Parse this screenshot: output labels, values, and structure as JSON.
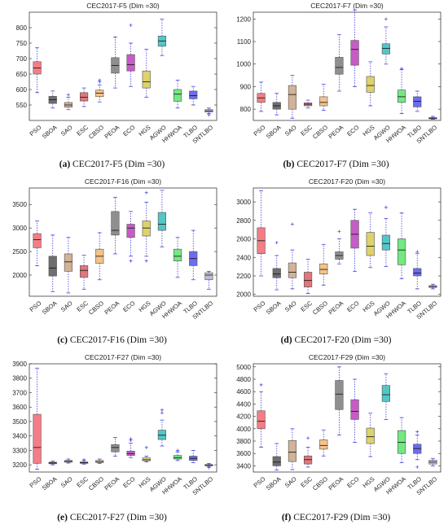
{
  "chart_data": [
    {
      "type": "box",
      "title": "CEC2017-F5 (Dim =30)",
      "caption_tag": "(a)",
      "caption_text": "CEC2017-F5 (Dim =30)",
      "categories": [
        "PSO",
        "SBOA",
        "SAO",
        "ESC",
        "CBSO",
        "PEOA",
        "ECO",
        "HGS",
        "AGWO",
        "HHWOA",
        "TLBO",
        "SNTLBO"
      ],
      "ylim": [
        500,
        850
      ],
      "yticks": [
        550,
        600,
        650,
        700,
        750,
        800
      ],
      "boxes": [
        {
          "whisker_low": 590,
          "q1": 650,
          "median": 670,
          "q3": 690,
          "whisker_high": 735,
          "outliers": []
        },
        {
          "whisker_low": 540,
          "q1": 555,
          "median": 567,
          "q3": 578,
          "whisker_high": 595,
          "outliers": []
        },
        {
          "whisker_low": 535,
          "q1": 543,
          "median": 550,
          "q3": 558,
          "whisker_high": 575,
          "outliers": [
            583
          ]
        },
        {
          "whisker_low": 545,
          "q1": 563,
          "median": 575,
          "q3": 590,
          "whisker_high": 605,
          "outliers": []
        },
        {
          "whisker_low": 560,
          "q1": 577,
          "median": 588,
          "q3": 598,
          "whisker_high": 615,
          "outliers": [
            625,
            630
          ]
        },
        {
          "whisker_low": 605,
          "q1": 653,
          "median": 678,
          "q3": 703,
          "whisker_high": 770,
          "outliers": []
        },
        {
          "whisker_low": 610,
          "q1": 660,
          "median": 680,
          "q3": 713,
          "whisker_high": 750,
          "outliers": [
            808
          ]
        },
        {
          "whisker_low": 575,
          "q1": 605,
          "median": 625,
          "q3": 660,
          "whisker_high": 730,
          "outliers": []
        },
        {
          "whisker_low": 710,
          "q1": 740,
          "median": 757,
          "q3": 773,
          "whisker_high": 828,
          "outliers": []
        },
        {
          "whisker_low": 540,
          "q1": 562,
          "median": 585,
          "q3": 600,
          "whisker_high": 630,
          "outliers": []
        },
        {
          "whisker_low": 550,
          "q1": 570,
          "median": 580,
          "q3": 595,
          "whisker_high": 610,
          "outliers": []
        },
        {
          "whisker_low": 522,
          "q1": 527,
          "median": 531,
          "q3": 535,
          "whisker_high": 540,
          "outliers": [
            518
          ]
        }
      ]
    },
    {
      "type": "box",
      "title": "CEC2017-F7 (Dim =30)",
      "caption_tag": "(b)",
      "caption_text": "CEC2017-F7 (Dim =30)",
      "categories": [
        "PSO",
        "SBOA",
        "SAO",
        "ESC",
        "CBSO",
        "PEOA",
        "ECO",
        "HGS",
        "AGWO",
        "HHWOA",
        "TLBO",
        "SNTLBO"
      ],
      "ylim": [
        750,
        1230
      ],
      "yticks": [
        800,
        900,
        1000,
        1100,
        1200
      ],
      "boxes": [
        {
          "whisker_low": 790,
          "q1": 830,
          "median": 850,
          "q3": 870,
          "whisker_high": 920,
          "outliers": []
        },
        {
          "whisker_low": 775,
          "q1": 800,
          "median": 815,
          "q3": 830,
          "whisker_high": 870,
          "outliers": []
        },
        {
          "whisker_low": 760,
          "q1": 800,
          "median": 865,
          "q3": 905,
          "whisker_high": 950,
          "outliers": []
        },
        {
          "whisker_low": 805,
          "q1": 815,
          "median": 822,
          "q3": 828,
          "whisker_high": 840,
          "outliers": []
        },
        {
          "whisker_low": 795,
          "q1": 815,
          "median": 830,
          "q3": 855,
          "whisker_high": 910,
          "outliers": []
        },
        {
          "whisker_low": 880,
          "q1": 955,
          "median": 985,
          "q3": 1030,
          "whisker_high": 1130,
          "outliers": []
        },
        {
          "whisker_low": 900,
          "q1": 995,
          "median": 1065,
          "q3": 1105,
          "whisker_high": 1240,
          "outliers": []
        },
        {
          "whisker_low": 815,
          "q1": 875,
          "median": 905,
          "q3": 945,
          "whisker_high": 1010,
          "outliers": []
        },
        {
          "whisker_low": 1000,
          "q1": 1045,
          "median": 1070,
          "q3": 1090,
          "whisker_high": 1165,
          "outliers": [
            1200
          ]
        },
        {
          "whisker_low": 780,
          "q1": 830,
          "median": 855,
          "q3": 885,
          "whisker_high": 975,
          "outliers": [
            980
          ]
        },
        {
          "whisker_low": 790,
          "q1": 810,
          "median": 835,
          "q3": 855,
          "whisker_high": 880,
          "outliers": []
        },
        {
          "whisker_low": 755,
          "q1": 757,
          "median": 760,
          "q3": 763,
          "whisker_high": 768,
          "outliers": []
        }
      ]
    },
    {
      "type": "box",
      "title": "CEC2017-F16 (Dim =30)",
      "caption_tag": "(c)",
      "caption_text": "CEC2017-F16 (Dim =30)",
      "categories": [
        "PSO",
        "SBOA",
        "SAO",
        "ESC",
        "CBSO",
        "PEOA",
        "ECO",
        "HGS",
        "AGWO",
        "HHWOA",
        "TLBO",
        "SNTLBO"
      ],
      "ylim": [
        1550,
        3850
      ],
      "yticks": [
        2000,
        2500,
        3000,
        3500
      ],
      "boxes": [
        {
          "whisker_low": 2200,
          "q1": 2580,
          "median": 2750,
          "q3": 2880,
          "whisker_high": 3150,
          "outliers": []
        },
        {
          "whisker_low": 1650,
          "q1": 1980,
          "median": 2150,
          "q3": 2400,
          "whisker_high": 2850,
          "outliers": []
        },
        {
          "whisker_low": 1620,
          "q1": 2080,
          "median": 2280,
          "q3": 2450,
          "whisker_high": 2800,
          "outliers": []
        },
        {
          "whisker_low": 1700,
          "q1": 1950,
          "median": 2100,
          "q3": 2200,
          "whisker_high": 2420,
          "outliers": []
        },
        {
          "whisker_low": 1900,
          "q1": 2250,
          "median": 2400,
          "q3": 2550,
          "whisker_high": 2900,
          "outliers": []
        },
        {
          "whisker_low": 2450,
          "q1": 2850,
          "median": 2950,
          "q3": 3350,
          "whisker_high": 3650,
          "outliers": []
        },
        {
          "whisker_low": 2400,
          "q1": 2800,
          "median": 3000,
          "q3": 3080,
          "whisker_high": 3350,
          "outliers": [
            2300
          ]
        },
        {
          "whisker_low": 2400,
          "q1": 2830,
          "median": 3000,
          "q3": 3150,
          "whisker_high": 3550,
          "outliers": [
            2300,
            3750
          ]
        },
        {
          "whisker_low": 2600,
          "q1": 2950,
          "median": 3080,
          "q3": 3330,
          "whisker_high": 3800,
          "outliers": []
        },
        {
          "whisker_low": 1950,
          "q1": 2300,
          "median": 2400,
          "q3": 2550,
          "whisker_high": 2800,
          "outliers": []
        },
        {
          "whisker_low": 1900,
          "q1": 2200,
          "median": 2350,
          "q3": 2500,
          "whisker_high": 2950,
          "outliers": []
        },
        {
          "whisker_low": 1700,
          "q1": 1900,
          "median": 2000,
          "q3": 2050,
          "whisker_high": 2080,
          "outliers": []
        }
      ]
    },
    {
      "type": "box",
      "title": "CEC2017-F20 (Dim =30)",
      "caption_tag": "(d)",
      "caption_text": "CEC2017-F20 (Dim =30)",
      "categories": [
        "PSO",
        "SBOA",
        "SAO",
        "ESC",
        "CBSO",
        "PEOA",
        "ECO",
        "HGS",
        "AGWO",
        "HHWOA",
        "TLBO",
        "SNTLBO"
      ],
      "ylim": [
        1980,
        3150
      ],
      "yticks": [
        2000,
        2200,
        2400,
        2600,
        2800,
        3000
      ],
      "boxes": [
        {
          "whisker_low": 2200,
          "q1": 2440,
          "median": 2580,
          "q3": 2720,
          "whisker_high": 3120,
          "outliers": []
        },
        {
          "whisker_low": 2050,
          "q1": 2180,
          "median": 2220,
          "q3": 2280,
          "whisker_high": 2420,
          "outliers": [
            2560
          ]
        },
        {
          "whisker_low": 2060,
          "q1": 2180,
          "median": 2240,
          "q3": 2340,
          "whisker_high": 2480,
          "outliers": [
            2760
          ]
        },
        {
          "whisker_low": 2010,
          "q1": 2080,
          "median": 2150,
          "q3": 2240,
          "whisker_high": 2380,
          "outliers": []
        },
        {
          "whisker_low": 2100,
          "q1": 2220,
          "median": 2270,
          "q3": 2330,
          "whisker_high": 2540,
          "outliers": []
        },
        {
          "whisker_low": 2330,
          "q1": 2380,
          "median": 2420,
          "q3": 2460,
          "whisker_high": 2600,
          "outliers": [
            2680
          ]
        },
        {
          "whisker_low": 2250,
          "q1": 2500,
          "median": 2650,
          "q3": 2800,
          "whisker_high": 2920,
          "outliers": []
        },
        {
          "whisker_low": 2290,
          "q1": 2420,
          "median": 2520,
          "q3": 2670,
          "whisker_high": 2880,
          "outliers": []
        },
        {
          "whisker_low": 2300,
          "q1": 2480,
          "median": 2550,
          "q3": 2640,
          "whisker_high": 2820,
          "outliers": [
            2940
          ]
        },
        {
          "whisker_low": 2170,
          "q1": 2320,
          "median": 2480,
          "q3": 2600,
          "whisker_high": 2880,
          "outliers": []
        },
        {
          "whisker_low": 2060,
          "q1": 2200,
          "median": 2230,
          "q3": 2280,
          "whisker_high": 2440,
          "outliers": [
            2460
          ]
        },
        {
          "whisker_low": 2060,
          "q1": 2075,
          "median": 2085,
          "q3": 2095,
          "whisker_high": 2110,
          "outliers": []
        }
      ]
    },
    {
      "type": "box",
      "title": "CEC2017-F27 (Dim =30)",
      "caption_tag": "(e)",
      "caption_text": "CEC2017-F27 (Dim =30)",
      "categories": [
        "PSO",
        "SBOA",
        "SAO",
        "ESC",
        "CBSO",
        "PEOA",
        "ECO",
        "HGS",
        "AGWO",
        "HHWOA",
        "TLBO",
        "SNTLBO"
      ],
      "ylim": [
        3150,
        3900
      ],
      "yticks": [
        3200,
        3300,
        3400,
        3500,
        3600,
        3700,
        3800,
        3900
      ],
      "boxes": [
        {
          "whisker_low": 3170,
          "q1": 3210,
          "median": 3320,
          "q3": 3550,
          "whisker_high": 3870,
          "outliers": []
        },
        {
          "whisker_low": 3200,
          "q1": 3207,
          "median": 3213,
          "q3": 3218,
          "whisker_high": 3225,
          "outliers": []
        },
        {
          "whisker_low": 3212,
          "q1": 3218,
          "median": 3224,
          "q3": 3230,
          "whisker_high": 3240,
          "outliers": []
        },
        {
          "whisker_low": 3205,
          "q1": 3210,
          "median": 3215,
          "q3": 3220,
          "whisker_high": 3230,
          "outliers": [
            3235
          ]
        },
        {
          "whisker_low": 3210,
          "q1": 3216,
          "median": 3222,
          "q3": 3230,
          "whisker_high": 3240,
          "outliers": []
        },
        {
          "whisker_low": 3260,
          "q1": 3290,
          "median": 3320,
          "q3": 3340,
          "whisker_high": 3390,
          "outliers": []
        },
        {
          "whisker_low": 3250,
          "q1": 3265,
          "median": 3278,
          "q3": 3295,
          "whisker_high": 3350,
          "outliers": [
            3370,
            3380
          ]
        },
        {
          "whisker_low": 3220,
          "q1": 3228,
          "median": 3235,
          "q3": 3248,
          "whisker_high": 3260,
          "outliers": [
            3320
          ]
        },
        {
          "whisker_low": 3330,
          "q1": 3375,
          "median": 3405,
          "q3": 3440,
          "whisker_high": 3510,
          "outliers": [
            3560,
            3580
          ]
        },
        {
          "whisker_low": 3230,
          "q1": 3240,
          "median": 3250,
          "q3": 3265,
          "whisker_high": 3290,
          "outliers": [
            3300
          ]
        },
        {
          "whisker_low": 3215,
          "q1": 3230,
          "median": 3245,
          "q3": 3260,
          "whisker_high": 3300,
          "outliers": []
        },
        {
          "whisker_low": 3185,
          "q1": 3192,
          "median": 3198,
          "q3": 3202,
          "whisker_high": 3210,
          "outliers": [
            3180
          ]
        }
      ]
    },
    {
      "type": "box",
      "title": "CEC2017-F29 (Dim =30)",
      "caption_tag": "(f)",
      "caption_text": "CEC2017-F29 (Dim =30)",
      "categories": [
        "PSO",
        "SBOA",
        "SAO",
        "ESC",
        "CBSO",
        "PEOA",
        "ECO",
        "HGS",
        "AGWO",
        "HHWOA",
        "TLBO",
        "SNTLBO"
      ],
      "ylim": [
        3300,
        5050
      ],
      "yticks": [
        3400,
        3600,
        3800,
        4000,
        4200,
        4400,
        4600,
        4800,
        5000
      ],
      "boxes": [
        {
          "whisker_low": 3700,
          "q1": 4000,
          "median": 4120,
          "q3": 4290,
          "whisker_high": 4600,
          "outliers": [
            4710
          ]
        },
        {
          "whisker_low": 3330,
          "q1": 3400,
          "median": 3460,
          "q3": 3550,
          "whisker_high": 3760,
          "outliers": []
        },
        {
          "whisker_low": 3340,
          "q1": 3470,
          "median": 3620,
          "q3": 3810,
          "whisker_high": 4000,
          "outliers": []
        },
        {
          "whisker_low": 3380,
          "q1": 3430,
          "median": 3500,
          "q3": 3560,
          "whisker_high": 3700,
          "outliers": [
            3850
          ]
        },
        {
          "whisker_low": 3560,
          "q1": 3670,
          "median": 3730,
          "q3": 3820,
          "whisker_high": 3980,
          "outliers": []
        },
        {
          "whisker_low": 3900,
          "q1": 4310,
          "median": 4560,
          "q3": 4780,
          "whisker_high": 5000,
          "outliers": []
        },
        {
          "whisker_low": 3780,
          "q1": 4150,
          "median": 4280,
          "q3": 4470,
          "whisker_high": 4800,
          "outliers": []
        },
        {
          "whisker_low": 3550,
          "q1": 3760,
          "median": 3870,
          "q3": 4010,
          "whisker_high": 4250,
          "outliers": []
        },
        {
          "whisker_low": 4150,
          "q1": 4440,
          "median": 4550,
          "q3": 4700,
          "whisker_high": 4890,
          "outliers": []
        },
        {
          "whisker_low": 3450,
          "q1": 3600,
          "median": 3780,
          "q3": 3970,
          "whisker_high": 4180,
          "outliers": []
        },
        {
          "whisker_low": 3500,
          "q1": 3600,
          "median": 3680,
          "q3": 3750,
          "whisker_high": 3900,
          "outliers": [
            3380,
            3950
          ]
        },
        {
          "whisker_low": 3400,
          "q1": 3430,
          "median": 3460,
          "q3": 3490,
          "whisker_high": 3520,
          "outliers": []
        }
      ]
    }
  ],
  "colors": {
    "box_fills": [
      "#f47d86",
      "#6e6e6e",
      "#d2b397",
      "#e2767d",
      "#f5c389",
      "#8f8f8f",
      "#c65cc6",
      "#ddd26b",
      "#55c6c6",
      "#74e883",
      "#6c6cee",
      "#c2bcd3"
    ],
    "whisker": "#3c3cd8",
    "median": "#111111",
    "outlier": "#3c3cd8"
  }
}
